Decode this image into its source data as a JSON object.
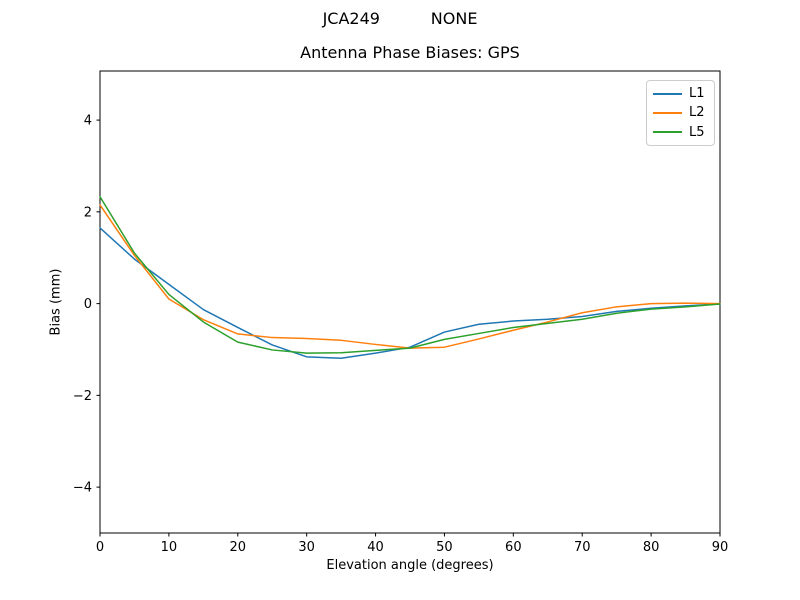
{
  "figure": {
    "suptitle": "JCA249          NONE"
  },
  "chart_data": {
    "type": "line",
    "title": "Antenna Phase Biases: GPS",
    "xlabel": "Elevation angle (degrees)",
    "ylabel": "Bias (mm)",
    "xlim": [
      0,
      90
    ],
    "ylim": [
      -5.0,
      5.07
    ],
    "x_ticks": [
      0,
      10,
      20,
      30,
      40,
      50,
      60,
      70,
      80,
      90
    ],
    "y_ticks": [
      -4,
      -2,
      0,
      2,
      4
    ],
    "grid": false,
    "legend_position": "upper right",
    "x": [
      0,
      5,
      10,
      15,
      20,
      25,
      30,
      35,
      40,
      45,
      50,
      55,
      60,
      65,
      70,
      75,
      80,
      85,
      90
    ],
    "series": [
      {
        "name": "L1",
        "color": "#1f77b4",
        "values": [
          1.65,
          0.97,
          0.42,
          -0.13,
          -0.52,
          -0.9,
          -1.16,
          -1.19,
          -1.08,
          -0.95,
          -0.62,
          -0.45,
          -0.38,
          -0.34,
          -0.28,
          -0.17,
          -0.1,
          -0.05,
          -0.01
        ]
      },
      {
        "name": "L2",
        "color": "#ff7f0e",
        "values": [
          2.15,
          1.05,
          0.1,
          -0.35,
          -0.66,
          -0.74,
          -0.76,
          -0.8,
          -0.89,
          -0.97,
          -0.95,
          -0.77,
          -0.58,
          -0.4,
          -0.2,
          -0.07,
          0.0,
          0.01,
          0.0
        ]
      },
      {
        "name": "L5",
        "color": "#2ca02c",
        "values": [
          2.33,
          1.1,
          0.2,
          -0.4,
          -0.84,
          -1.01,
          -1.08,
          -1.07,
          -1.02,
          -0.97,
          -0.78,
          -0.65,
          -0.52,
          -0.43,
          -0.34,
          -0.21,
          -0.12,
          -0.07,
          -0.01
        ]
      }
    ]
  }
}
